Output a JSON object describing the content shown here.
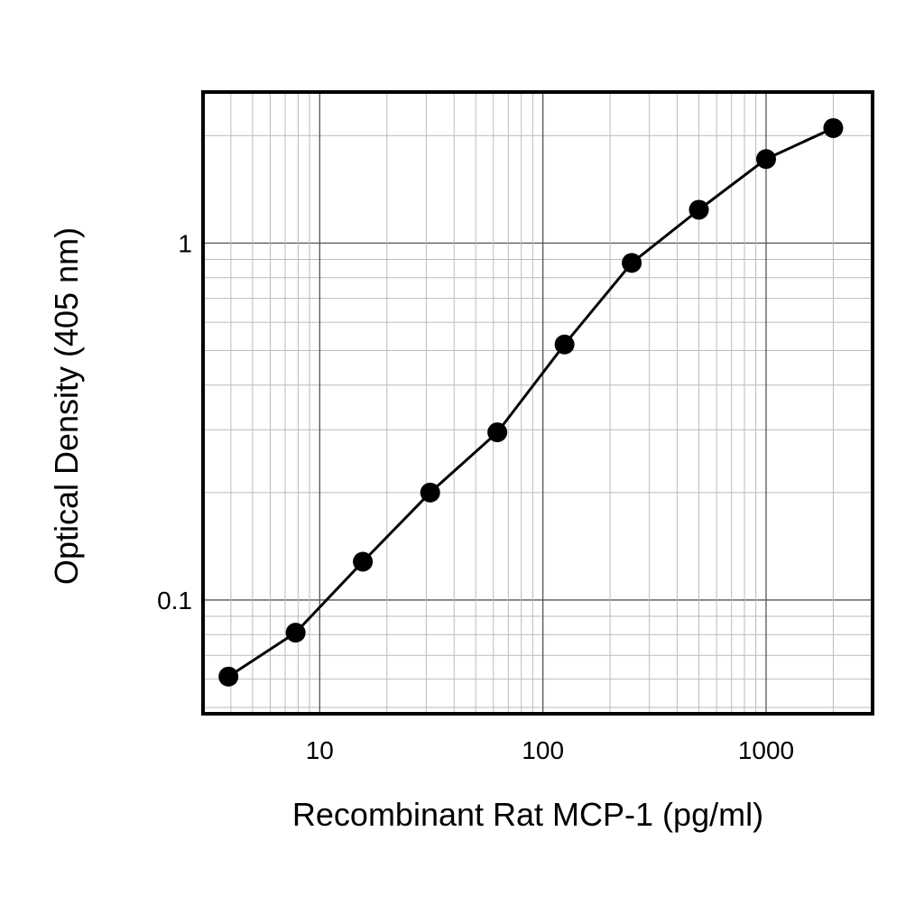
{
  "chart_data": {
    "type": "line",
    "title": "",
    "xlabel": "Recombinant Rat MCP-1 (pg/ml)",
    "ylabel": "Optical Density (405 nm)",
    "x_scale": "log",
    "y_scale": "log",
    "xlim": [
      3,
      3000
    ],
    "ylim": [
      0.048,
      2.65
    ],
    "x_ticks": [
      {
        "value": 10,
        "label": "10"
      },
      {
        "value": 100,
        "label": "100"
      },
      {
        "value": 1000,
        "label": "1000"
      }
    ],
    "y_ticks": [
      {
        "value": 0.1,
        "label": "0.1"
      },
      {
        "value": 1,
        "label": "1"
      }
    ],
    "grid": true,
    "series": [
      {
        "x": [
          3.9,
          7.8,
          15.6,
          31.25,
          62.5,
          125,
          250,
          500,
          1000,
          2000
        ],
        "y": [
          0.061,
          0.081,
          0.128,
          0.2,
          0.295,
          0.52,
          0.88,
          1.24,
          1.72,
          2.1
        ]
      }
    ],
    "colors": {
      "line": "#000000",
      "marker": "#000000",
      "grid_major": "#555555",
      "grid_minor": "#bbbbbb",
      "frame": "#000000"
    }
  }
}
